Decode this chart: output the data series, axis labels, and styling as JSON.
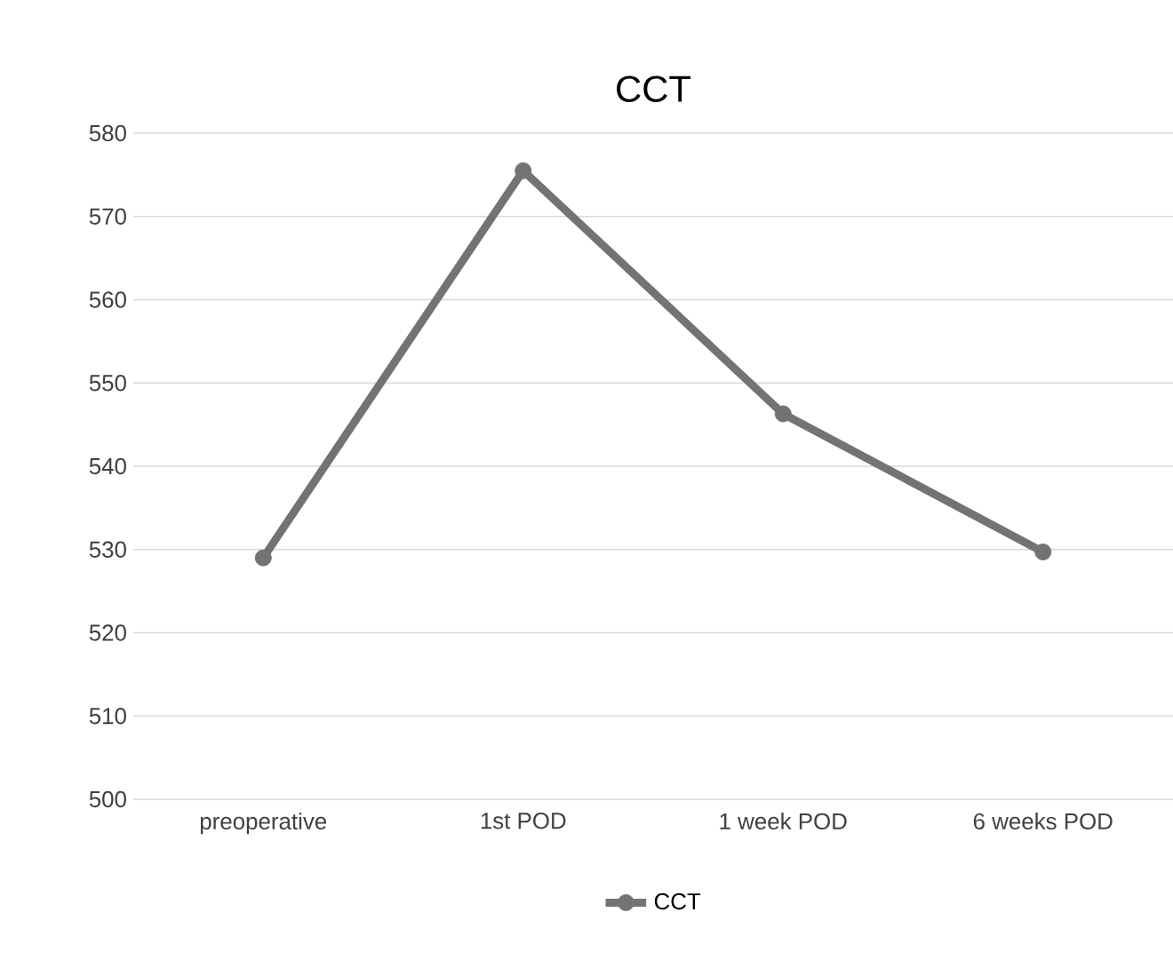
{
  "chart_data": {
    "type": "line",
    "title": "CCT",
    "categories": [
      "preoperative",
      "1st POD",
      "1 week POD",
      "6 weeks POD"
    ],
    "series": [
      {
        "name": "CCT",
        "color": "#737373",
        "values": [
          529,
          575.5,
          546.3,
          529.7
        ]
      }
    ],
    "ylim": [
      500,
      580
    ],
    "yticks": [
      500,
      510,
      520,
      530,
      540,
      550,
      560,
      570,
      580
    ],
    "grid": "y",
    "legend": "bottom",
    "marker": "circle",
    "line_style": "solid"
  }
}
